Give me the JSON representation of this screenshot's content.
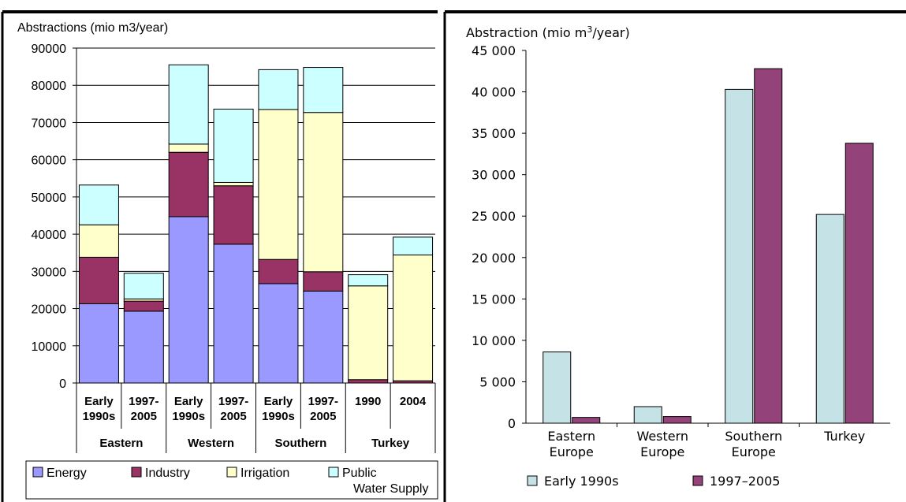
{
  "chart_data": [
    {
      "type": "bar",
      "stacked": true,
      "ylabel": "Abstractions (mio m3/year)",
      "ylim": [
        0,
        90000
      ],
      "yticks": [
        0,
        10000,
        20000,
        30000,
        40000,
        50000,
        60000,
        70000,
        80000,
        90000
      ],
      "grid": true,
      "legend_position": "bottom",
      "groups": [
        {
          "label": "Eastern",
          "categories": [
            [
              "Early",
              "1990s"
            ],
            [
              "1997-",
              "2005"
            ]
          ]
        },
        {
          "label": "Western",
          "categories": [
            [
              "Early",
              "1990s"
            ],
            [
              "1997-",
              "2005"
            ]
          ]
        },
        {
          "label": "Southern",
          "categories": [
            [
              "Early",
              "1990s"
            ],
            [
              "1997-",
              "2005"
            ]
          ]
        },
        {
          "label": "Turkey",
          "categories": [
            [
              "1990"
            ],
            [
              "2004"
            ]
          ]
        }
      ],
      "series": [
        {
          "name": "Energy",
          "color": "#9999ff",
          "values": [
            21300,
            19300,
            44700,
            37300,
            26700,
            24700,
            0,
            0
          ]
        },
        {
          "name": "Industry",
          "color": "#993366",
          "values": [
            12500,
            2700,
            17300,
            15700,
            6500,
            5200,
            900,
            600
          ]
        },
        {
          "name": "Irrigation",
          "color": "#ffffcc",
          "values": [
            8700,
            600,
            2200,
            900,
            40300,
            42800,
            25200,
            33800
          ]
        },
        {
          "name": "Public Water Supply",
          "legend_lines": [
            "Public",
            "Water Supply"
          ],
          "color": "#ccffff",
          "values": [
            10700,
            6900,
            21300,
            19700,
            10700,
            12100,
            3000,
            4800
          ]
        }
      ]
    },
    {
      "type": "bar",
      "ylabel": "Abstraction (mio m³/year)",
      "ylim": [
        0,
        45000
      ],
      "yticks": [
        0,
        5000,
        10000,
        15000,
        20000,
        25000,
        30000,
        35000,
        40000,
        45000
      ],
      "ytick_labels": [
        "0",
        "5 000",
        "10 000",
        "15 000",
        "20 000",
        "25 000",
        "30 000",
        "35 000",
        "40 000",
        "45 000"
      ],
      "grid": false,
      "legend_position": "bottom",
      "categories": [
        [
          "Eastern",
          "Europe"
        ],
        [
          "Western",
          "Europe"
        ],
        [
          "Southern",
          "Europe"
        ],
        [
          "Turkey"
        ]
      ],
      "series": [
        {
          "name": "Early 1990s",
          "color": "#c5e3e6",
          "values": [
            8600,
            2000,
            40300,
            25200
          ]
        },
        {
          "name": "1997–2005",
          "color": "#93427a",
          "values": [
            700,
            800,
            42800,
            33800
          ]
        }
      ]
    }
  ]
}
